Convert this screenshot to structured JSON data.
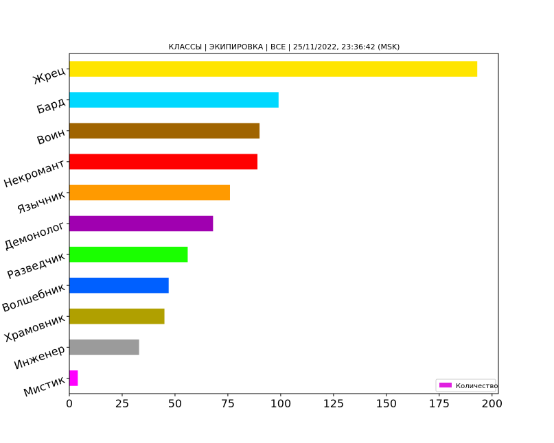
{
  "chart_data": {
    "type": "bar",
    "orientation": "horizontal",
    "title": "КЛАССЫ | ЭКИПИРОВКА | ВСЕ | 25/11/2022, 23:36:42 (MSK)",
    "categories": [
      "Жрец",
      "Бард",
      "Воин",
      "Некромант",
      "Язычник",
      "Демонолог",
      "Разведчик",
      "Волшебник",
      "Храмовник",
      "Инженер",
      "Мистик"
    ],
    "values": [
      193,
      99,
      90,
      89,
      76,
      68,
      56,
      47,
      45,
      33,
      4
    ],
    "colors": [
      "#ffe500",
      "#00d8ff",
      "#a06400",
      "#ff0000",
      "#ff9a00",
      "#a000b0",
      "#1aff00",
      "#0060ff",
      "#b0a000",
      "#9b9b9b",
      "#ff00ff"
    ],
    "xlim": [
      0,
      203
    ],
    "xticks": [
      0,
      25,
      50,
      75,
      100,
      125,
      150,
      175,
      200
    ],
    "legend": {
      "label": "Количество",
      "color": "#e020e0",
      "placement": "lower-right"
    },
    "grid": false
  }
}
